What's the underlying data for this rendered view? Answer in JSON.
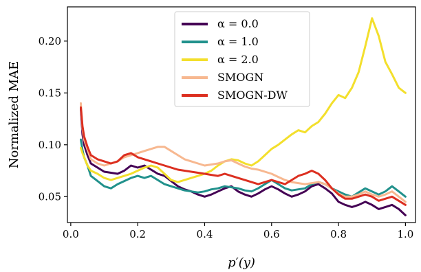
{
  "chart_data": {
    "type": "line",
    "title": "",
    "xlabel": "p′(y)",
    "ylabel": "Normalized MAE",
    "xlim": [
      -0.01,
      1.03
    ],
    "ylim": [
      0.025,
      0.233
    ],
    "xticks": [
      "0.0",
      "0.2",
      "0.4",
      "0.6",
      "0.8",
      "1.0"
    ],
    "xtick_values": [
      0.0,
      0.2,
      0.4,
      0.6,
      0.8,
      1.0
    ],
    "yticks": [
      "0.05",
      "0.10",
      "0.15",
      "0.20"
    ],
    "ytick_values": [
      0.05,
      0.1,
      0.15,
      0.2
    ],
    "grid": false,
    "legend_position": "upper-center",
    "series": [
      {
        "name": "α = 0.0",
        "color": "#440154",
        "x": [
          0.03,
          0.035,
          0.04,
          0.05,
          0.06,
          0.08,
          0.1,
          0.12,
          0.14,
          0.16,
          0.18,
          0.2,
          0.22,
          0.24,
          0.26,
          0.28,
          0.3,
          0.32,
          0.34,
          0.36,
          0.38,
          0.4,
          0.42,
          0.44,
          0.46,
          0.48,
          0.5,
          0.52,
          0.54,
          0.56,
          0.58,
          0.6,
          0.62,
          0.64,
          0.66,
          0.68,
          0.7,
          0.72,
          0.74,
          0.76,
          0.78,
          0.8,
          0.82,
          0.84,
          0.86,
          0.88,
          0.9,
          0.92,
          0.94,
          0.96,
          0.98,
          1.0
        ],
        "y": [
          0.135,
          0.11,
          0.1,
          0.09,
          0.082,
          0.078,
          0.074,
          0.073,
          0.072,
          0.075,
          0.08,
          0.078,
          0.08,
          0.076,
          0.072,
          0.07,
          0.065,
          0.06,
          0.057,
          0.055,
          0.052,
          0.05,
          0.052,
          0.055,
          0.058,
          0.06,
          0.055,
          0.052,
          0.05,
          0.053,
          0.057,
          0.06,
          0.057,
          0.053,
          0.05,
          0.052,
          0.055,
          0.06,
          0.062,
          0.058,
          0.053,
          0.045,
          0.042,
          0.04,
          0.042,
          0.045,
          0.042,
          0.038,
          0.04,
          0.042,
          0.038,
          0.032
        ]
      },
      {
        "name": "α = 1.0",
        "color": "#21918c",
        "x": [
          0.03,
          0.035,
          0.04,
          0.05,
          0.06,
          0.08,
          0.1,
          0.12,
          0.14,
          0.16,
          0.18,
          0.2,
          0.22,
          0.24,
          0.26,
          0.28,
          0.3,
          0.32,
          0.34,
          0.36,
          0.38,
          0.4,
          0.42,
          0.44,
          0.46,
          0.48,
          0.5,
          0.52,
          0.54,
          0.56,
          0.58,
          0.6,
          0.62,
          0.64,
          0.66,
          0.68,
          0.7,
          0.72,
          0.74,
          0.76,
          0.78,
          0.8,
          0.82,
          0.84,
          0.86,
          0.88,
          0.9,
          0.92,
          0.94,
          0.96,
          0.98,
          1.0
        ],
        "y": [
          0.105,
          0.095,
          0.088,
          0.08,
          0.07,
          0.065,
          0.06,
          0.058,
          0.062,
          0.065,
          0.068,
          0.07,
          0.068,
          0.07,
          0.066,
          0.062,
          0.06,
          0.058,
          0.056,
          0.055,
          0.054,
          0.055,
          0.057,
          0.058,
          0.06,
          0.059,
          0.058,
          0.056,
          0.055,
          0.058,
          0.062,
          0.066,
          0.062,
          0.058,
          0.056,
          0.057,
          0.058,
          0.062,
          0.064,
          0.062,
          0.058,
          0.055,
          0.052,
          0.05,
          0.054,
          0.058,
          0.055,
          0.052,
          0.055,
          0.06,
          0.055,
          0.05
        ]
      },
      {
        "name": "α = 2.0",
        "color": "#f3df2c",
        "x": [
          0.03,
          0.035,
          0.04,
          0.05,
          0.06,
          0.08,
          0.1,
          0.12,
          0.14,
          0.16,
          0.18,
          0.2,
          0.22,
          0.24,
          0.26,
          0.28,
          0.3,
          0.32,
          0.34,
          0.36,
          0.38,
          0.4,
          0.42,
          0.44,
          0.46,
          0.48,
          0.5,
          0.52,
          0.54,
          0.56,
          0.58,
          0.6,
          0.62,
          0.64,
          0.66,
          0.68,
          0.7,
          0.72,
          0.74,
          0.76,
          0.78,
          0.8,
          0.82,
          0.84,
          0.86,
          0.88,
          0.9,
          0.92,
          0.94,
          0.96,
          0.98,
          1.0
        ],
        "y": [
          0.097,
          0.092,
          0.088,
          0.08,
          0.075,
          0.072,
          0.068,
          0.066,
          0.068,
          0.07,
          0.072,
          0.075,
          0.078,
          0.08,
          0.078,
          0.072,
          0.066,
          0.064,
          0.066,
          0.068,
          0.07,
          0.072,
          0.075,
          0.08,
          0.084,
          0.086,
          0.085,
          0.082,
          0.08,
          0.084,
          0.09,
          0.096,
          0.1,
          0.105,
          0.11,
          0.114,
          0.112,
          0.118,
          0.122,
          0.13,
          0.14,
          0.148,
          0.145,
          0.155,
          0.17,
          0.195,
          0.222,
          0.205,
          0.18,
          0.168,
          0.155,
          0.15
        ]
      },
      {
        "name": "SMOGN",
        "color": "#f7b890",
        "x": [
          0.03,
          0.035,
          0.04,
          0.05,
          0.06,
          0.08,
          0.1,
          0.12,
          0.14,
          0.16,
          0.18,
          0.2,
          0.22,
          0.24,
          0.26,
          0.28,
          0.3,
          0.32,
          0.34,
          0.36,
          0.38,
          0.4,
          0.42,
          0.44,
          0.46,
          0.48,
          0.5,
          0.52,
          0.54,
          0.56,
          0.58,
          0.6,
          0.62,
          0.64,
          0.66,
          0.68,
          0.7,
          0.72,
          0.74,
          0.76,
          0.78,
          0.8,
          0.82,
          0.84,
          0.86,
          0.88,
          0.9,
          0.92,
          0.94,
          0.96,
          0.98,
          1.0
        ],
        "y": [
          0.14,
          0.115,
          0.105,
          0.095,
          0.086,
          0.082,
          0.08,
          0.082,
          0.084,
          0.088,
          0.09,
          0.092,
          0.094,
          0.096,
          0.098,
          0.098,
          0.094,
          0.09,
          0.086,
          0.084,
          0.082,
          0.08,
          0.081,
          0.082,
          0.084,
          0.085,
          0.082,
          0.079,
          0.077,
          0.076,
          0.074,
          0.072,
          0.069,
          0.066,
          0.064,
          0.063,
          0.062,
          0.063,
          0.064,
          0.062,
          0.058,
          0.053,
          0.05,
          0.05,
          0.052,
          0.055,
          0.052,
          0.05,
          0.052,
          0.055,
          0.05,
          0.045
        ]
      },
      {
        "name": "SMOGN-DW",
        "color": "#dc2f20",
        "x": [
          0.03,
          0.035,
          0.04,
          0.05,
          0.06,
          0.08,
          0.1,
          0.12,
          0.14,
          0.16,
          0.18,
          0.2,
          0.22,
          0.24,
          0.26,
          0.28,
          0.3,
          0.32,
          0.34,
          0.36,
          0.38,
          0.4,
          0.42,
          0.44,
          0.46,
          0.48,
          0.5,
          0.52,
          0.54,
          0.56,
          0.58,
          0.6,
          0.62,
          0.64,
          0.66,
          0.68,
          0.7,
          0.72,
          0.74,
          0.76,
          0.78,
          0.8,
          0.82,
          0.84,
          0.86,
          0.88,
          0.9,
          0.92,
          0.94,
          0.96,
          0.98,
          1.0
        ],
        "y": [
          0.136,
          0.118,
          0.108,
          0.098,
          0.09,
          0.086,
          0.084,
          0.082,
          0.084,
          0.09,
          0.092,
          0.088,
          0.086,
          0.084,
          0.082,
          0.08,
          0.078,
          0.076,
          0.075,
          0.074,
          0.073,
          0.072,
          0.071,
          0.07,
          0.072,
          0.07,
          0.068,
          0.066,
          0.064,
          0.062,
          0.064,
          0.066,
          0.064,
          0.062,
          0.066,
          0.07,
          0.072,
          0.075,
          0.072,
          0.066,
          0.058,
          0.052,
          0.048,
          0.048,
          0.05,
          0.052,
          0.05,
          0.046,
          0.048,
          0.05,
          0.046,
          0.042
        ]
      }
    ]
  }
}
